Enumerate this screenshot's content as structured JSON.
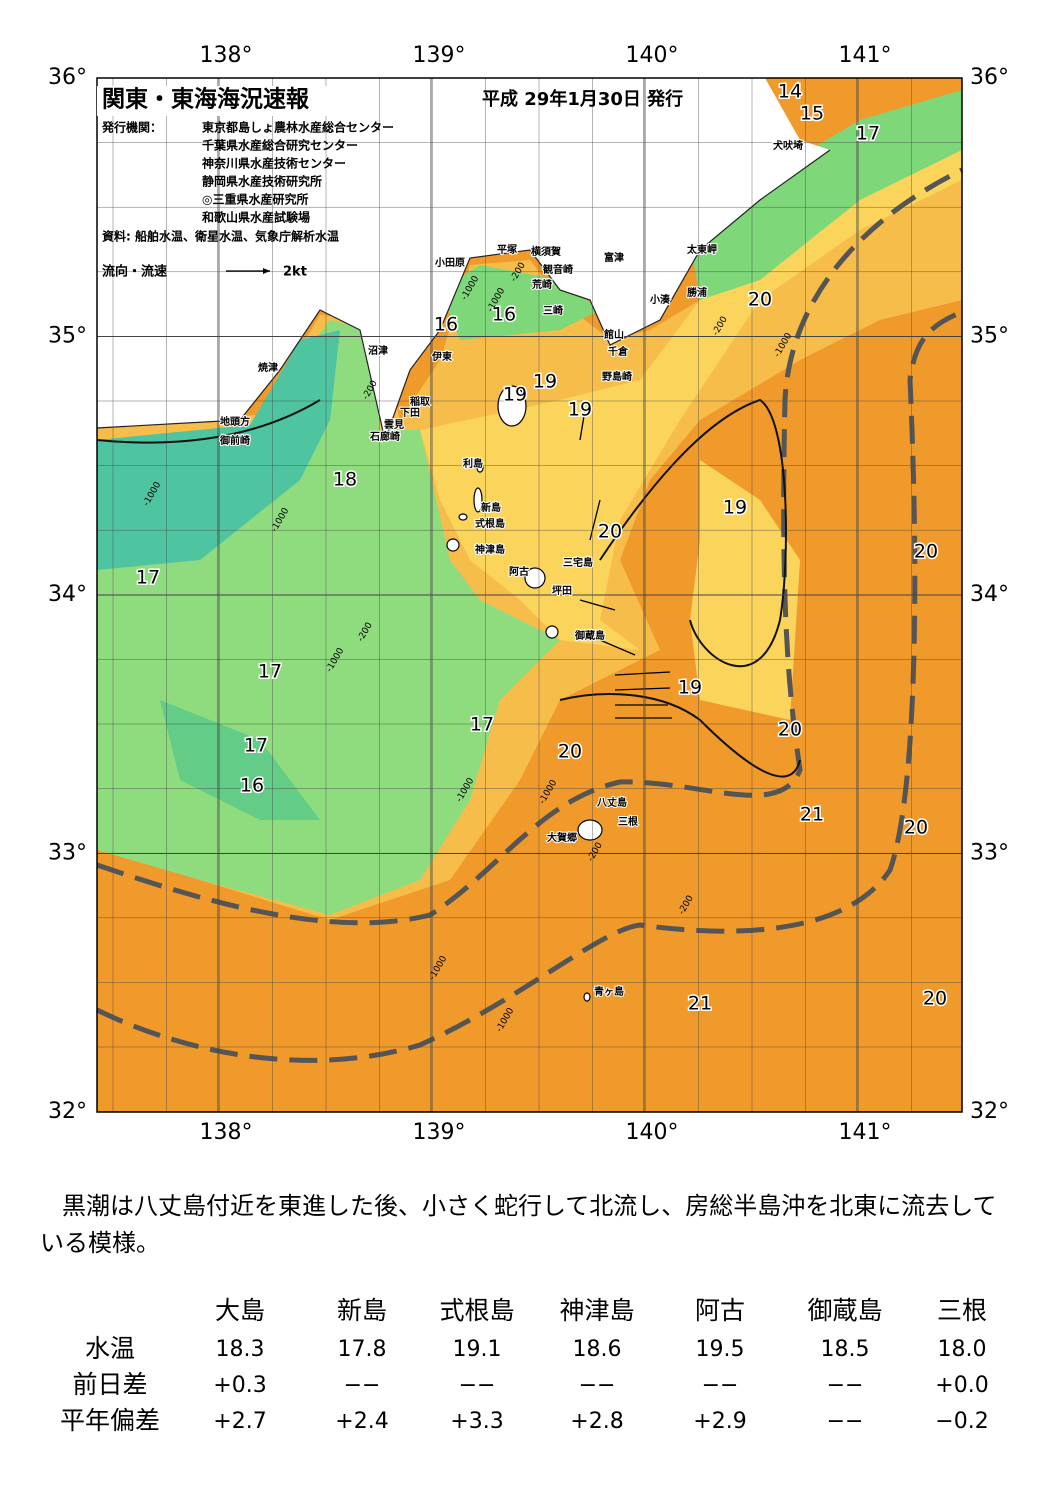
{
  "header": {
    "title": "関東・東海海況速報",
    "date": "平成 29年1月30日 発行",
    "issuer_label": "発行機関：",
    "issuers": [
      "東京都島しょ農林水産総合センター",
      "千葉県水産総合研究センター",
      "神奈川県水産技術センター",
      "静岡県水産技術研究所",
      "◎三重県水産研究所",
      "和歌山県水産試験場"
    ],
    "source": "資料: 船舶水温、衛星水温、気象庁解析水温",
    "legend_label": "流向・流速",
    "legend_speed": "2kt"
  },
  "map": {
    "lat_ticks": [
      {
        "value": 36,
        "label": "36°"
      },
      {
        "value": 35,
        "label": "35°"
      },
      {
        "value": 34,
        "label": "34°"
      },
      {
        "value": 33,
        "label": "33°"
      },
      {
        "value": 32,
        "label": "32°"
      }
    ],
    "lon_ticks": [
      {
        "value": 138,
        "label": "138°"
      },
      {
        "value": 139,
        "label": "139°"
      },
      {
        "value": 140,
        "label": "140°"
      },
      {
        "value": 141,
        "label": "141°"
      }
    ],
    "temperature_labels": [
      "14",
      "15",
      "17",
      "16",
      "16",
      "19",
      "19",
      "19",
      "18",
      "20",
      "19",
      "20",
      "17",
      "17",
      "17",
      "19",
      "20",
      "20",
      "17",
      "16",
      "21",
      "20",
      "21",
      "20",
      "20"
    ],
    "place_names": [
      "小田原",
      "平塚",
      "横須賀",
      "観音崎",
      "荒崎",
      "三崎",
      "富津",
      "太東岬",
      "勝浦",
      "小湊",
      "館山",
      "千倉",
      "野島崎",
      "犬吠埼",
      "沼津",
      "伊東",
      "焼津",
      "稲取",
      "下田",
      "雲見",
      "石廊崎",
      "地頭方",
      "御前崎",
      "利島",
      "新島",
      "式根島",
      "神津島",
      "三宅島",
      "阿古",
      "坪田",
      "御蔵島",
      "八丈島",
      "三根",
      "大賀郷",
      "青ヶ島"
    ],
    "depth_labels": [
      "-200",
      "-1000",
      "-200",
      "-1000",
      "-1000",
      "-200",
      "-1000",
      "-1000",
      "-1000",
      "-200",
      "-1000",
      "-1000",
      "-1000",
      "-1000",
      "-200",
      "-200"
    ]
  },
  "summary": "黒潮は八丈島付近を東進した後、小さく蛇行して北流し、房総半島沖を北東に流去している模様。",
  "table": {
    "columns": [
      "大島",
      "新島",
      "式根島",
      "神津島",
      "阿古",
      "御蔵島",
      "三根"
    ],
    "rows": [
      {
        "label": "水温",
        "values": [
          "18.3",
          "17.8",
          "19.1",
          "18.6",
          "19.5",
          "18.5",
          "18.0"
        ]
      },
      {
        "label": "前日差",
        "values": [
          "+0.3",
          "−−",
          "−−",
          "−−",
          "−−",
          "−−",
          "+0.0"
        ]
      },
      {
        "label": "平年偏差",
        "values": [
          "+2.7",
          "+2.4",
          "+3.3",
          "+2.8",
          "+2.9",
          "−−",
          "−0.2"
        ]
      }
    ]
  }
}
